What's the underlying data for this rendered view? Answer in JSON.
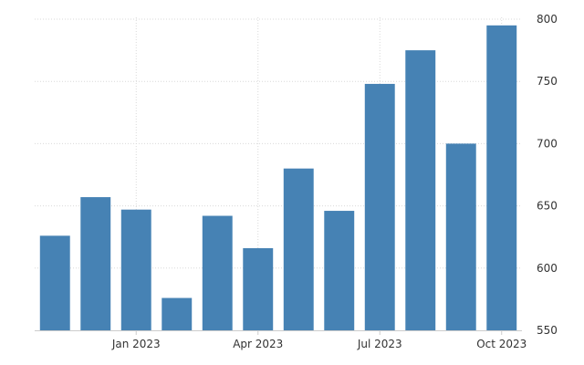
{
  "chart_data": {
    "type": "bar",
    "title": "",
    "xlabel": "",
    "ylabel": "",
    "categories": [
      "Nov 2022",
      "Dec 2022",
      "Jan 2023",
      "Feb 2023",
      "Mar 2023",
      "Apr 2023",
      "May 2023",
      "Jun 2023",
      "Jul 2023",
      "Aug 2023",
      "Sep 2023",
      "Oct 2023"
    ],
    "values": [
      626,
      657,
      647,
      576,
      642,
      616,
      680,
      646,
      748,
      775,
      700,
      795
    ],
    "ylim": [
      550,
      800
    ],
    "y_ticks": [
      {
        "value": 550,
        "label": "550"
      },
      {
        "value": 600,
        "label": "600"
      },
      {
        "value": 650,
        "label": "650"
      },
      {
        "value": 700,
        "label": "700"
      },
      {
        "value": 750,
        "label": "750"
      },
      {
        "value": 800,
        "label": "800"
      }
    ],
    "x_ticks": [
      {
        "category": "Jan 2023",
        "label": "Jan 2023"
      },
      {
        "category": "Apr 2023",
        "label": "Apr 2023"
      },
      {
        "category": "Jul 2023",
        "label": "Jul 2023"
      },
      {
        "category": "Oct 2023",
        "label": "Oct 2023"
      }
    ],
    "y_axis_position": "right",
    "grid": true,
    "legend": false,
    "bar_color": "#4682b4"
  }
}
